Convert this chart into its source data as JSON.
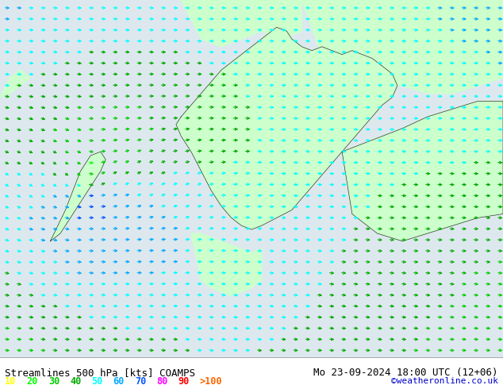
{
  "title_left": "Streamlines 500 hPa [kts] COAMPS",
  "title_right": "Mo 23-09-2024 18:00 UTC (12+06)",
  "credit": "©weatheronline.co.uk",
  "legend_values": [
    "10",
    "20",
    "30",
    "40",
    "50",
    "60",
    "70",
    "80",
    "90",
    ">100"
  ],
  "legend_colors": [
    "#ffff00",
    "#00ff00",
    "#00cc00",
    "#00aa00",
    "#00ffff",
    "#00aaff",
    "#0055ff",
    "#ff00ff",
    "#ff0000",
    "#ff6600"
  ],
  "background_color": "#e8e8e8",
  "land_color": "#ccffcc",
  "ocean_color": "#dde8ee",
  "border_color": "#333333",
  "bottom_bar_color": "#ffffff",
  "figsize": [
    6.34,
    4.9
  ],
  "dpi": 100,
  "title_fontsize": 9,
  "legend_fontsize": 8.5,
  "credit_fontsize": 8,
  "title_color": "#000000",
  "credit_color": "#0000cc"
}
